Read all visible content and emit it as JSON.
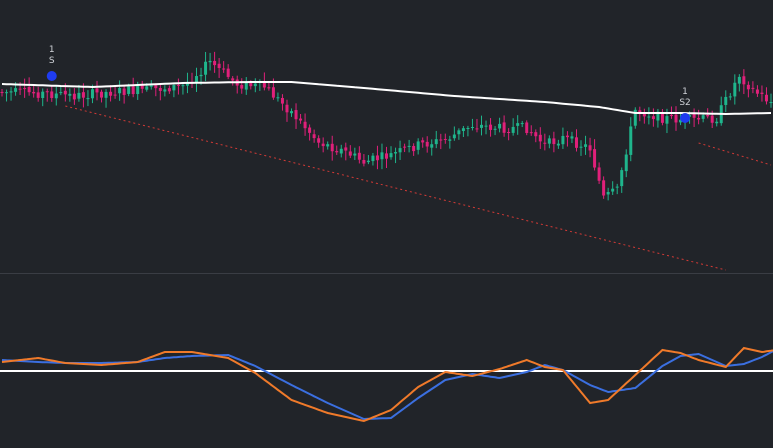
{
  "colors": {
    "background": "#212429",
    "bull": "#1fb58c",
    "bear": "#e0207a",
    "moving_average": "#ffffff",
    "trendline": "#d33a36",
    "signal_dot": "#1f3cf0",
    "divider": "#3a3d44",
    "oscillator_fast": "#f07a2a",
    "oscillator_slow": "#3b6fe0",
    "oscillator_zero": "#ffffff"
  },
  "chart_data": [
    {
      "type": "candlestick",
      "panel": "price",
      "title": "",
      "xlabel": "",
      "ylabel": "",
      "grid": false,
      "legend": "none",
      "candles": {
        "count": 171,
        "x_start": 0,
        "x_end": 170
      },
      "anchors": [
        [
          0,
          92
        ],
        [
          8,
          93
        ],
        [
          16,
          96
        ],
        [
          24,
          92
        ],
        [
          32,
          90
        ],
        [
          40,
          86
        ],
        [
          46,
          62
        ],
        [
          52,
          84
        ],
        [
          58,
          87
        ],
        [
          64,
          112
        ],
        [
          70,
          142
        ],
        [
          76,
          152
        ],
        [
          80,
          162
        ],
        [
          86,
          155
        ],
        [
          92,
          145
        ],
        [
          98,
          140
        ],
        [
          104,
          125
        ],
        [
          110,
          128
        ],
        [
          116,
          128
        ],
        [
          120,
          145
        ],
        [
          124,
          138
        ],
        [
          130,
          148
        ],
        [
          133,
          198
        ],
        [
          136,
          190
        ],
        [
          140,
          110
        ],
        [
          146,
          118
        ],
        [
          152,
          120
        ],
        [
          158,
          118
        ],
        [
          163,
          75
        ],
        [
          166,
          90
        ],
        [
          170,
          102
        ]
      ],
      "moving_average": [
        [
          0,
          84
        ],
        [
          20,
          87
        ],
        [
          40,
          83
        ],
        [
          55,
          82
        ],
        [
          64,
          82
        ],
        [
          80,
          88
        ],
        [
          100,
          96
        ],
        [
          120,
          102
        ],
        [
          132,
          107
        ],
        [
          140,
          113
        ],
        [
          150,
          113
        ],
        [
          160,
          114
        ],
        [
          170,
          113
        ]
      ],
      "trendlines": [
        {
          "from": [
            14,
            106
          ],
          "to": [
            160,
            270
          ]
        },
        {
          "from": [
            154,
            143
          ],
          "to": [
            170,
            165
          ]
        }
      ],
      "signals": [
        {
          "x": 11,
          "level": 74,
          "count": "1",
          "label": "S"
        },
        {
          "x": 151,
          "level": 116,
          "count": "1",
          "label": "S2"
        }
      ],
      "y_range_top_to_bottom": [
        0,
        272
      ]
    },
    {
      "type": "line",
      "panel": "oscillator",
      "title": "",
      "xlabel": "",
      "ylabel": "",
      "grid": false,
      "legend": "none",
      "zero_line": 371,
      "series": [
        {
          "values": [
            [
              0,
              362
            ],
            [
              8,
              358
            ],
            [
              14,
              363
            ],
            [
              22,
              365
            ],
            [
              30,
              362
            ],
            [
              36,
              352
            ],
            [
              42,
              352
            ],
            [
              50,
              358
            ],
            [
              56,
              373
            ],
            [
              64,
              400
            ],
            [
              72,
              413
            ],
            [
              80,
              421
            ],
            [
              86,
              410
            ],
            [
              92,
              387
            ],
            [
              98,
              372
            ],
            [
              104,
              376
            ],
            [
              110,
              369
            ],
            [
              116,
              360
            ],
            [
              120,
              367
            ],
            [
              124,
              370
            ],
            [
              130,
              403
            ],
            [
              134,
              400
            ],
            [
              140,
              375
            ],
            [
              146,
              350
            ],
            [
              150,
              353
            ],
            [
              154,
              360
            ],
            [
              160,
              367
            ],
            [
              164,
              348
            ],
            [
              168,
              352
            ],
            [
              171,
              350
            ]
          ]
        },
        {
          "values": [
            [
              0,
              360
            ],
            [
              8,
              362
            ],
            [
              14,
              363
            ],
            [
              22,
              363
            ],
            [
              30,
              362
            ],
            [
              36,
              358
            ],
            [
              42,
              356
            ],
            [
              50,
              355
            ],
            [
              56,
              366
            ],
            [
              64,
              385
            ],
            [
              72,
              403
            ],
            [
              80,
              419
            ],
            [
              86,
              418
            ],
            [
              92,
              398
            ],
            [
              98,
              380
            ],
            [
              104,
              374
            ],
            [
              110,
              378
            ],
            [
              116,
              372
            ],
            [
              120,
              365
            ],
            [
              124,
              370
            ],
            [
              130,
              385
            ],
            [
              134,
              392
            ],
            [
              140,
              388
            ],
            [
              146,
              366
            ],
            [
              150,
              356
            ],
            [
              154,
              354
            ],
            [
              160,
              366
            ],
            [
              164,
              364
            ],
            [
              168,
              357
            ],
            [
              171,
              350
            ]
          ]
        }
      ]
    }
  ]
}
